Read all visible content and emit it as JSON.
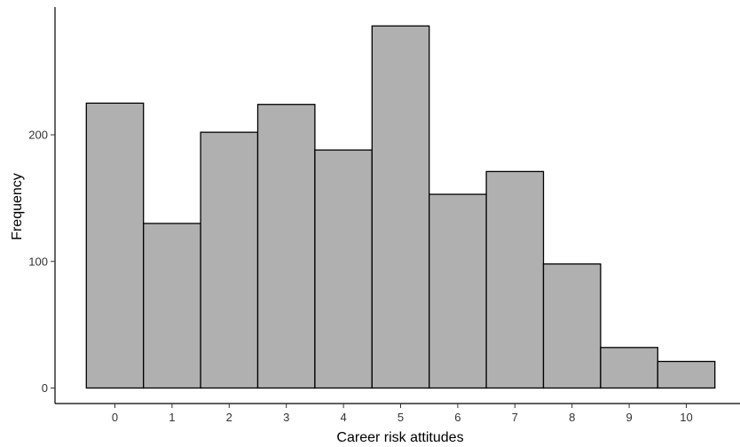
{
  "chart_data": {
    "type": "bar",
    "categories": [
      "0",
      "1",
      "2",
      "3",
      "4",
      "5",
      "6",
      "7",
      "8",
      "9",
      "10"
    ],
    "values": [
      225,
      130,
      202,
      224,
      188,
      286,
      153,
      171,
      98,
      32,
      21
    ],
    "xlabel": "Career risk attitudes",
    "ylabel": "Frequency",
    "yticks": [
      "0",
      "100",
      "200"
    ],
    "ylim": [
      0,
      300
    ],
    "grid": false,
    "bar_color": "#b0b0b0",
    "bar_edge_color": "#000000"
  }
}
